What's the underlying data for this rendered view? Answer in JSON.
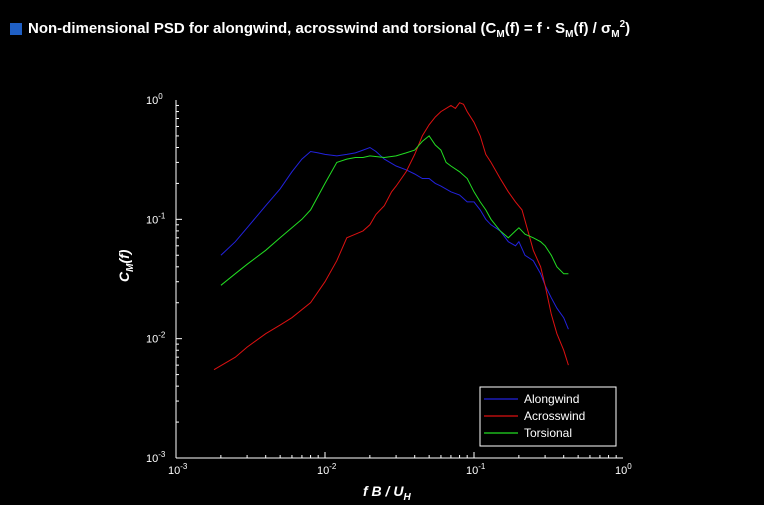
{
  "chart_data": {
    "type": "line",
    "title": "Non-dimensional PSD for alongwind, acrosswind and torsional (C_M(f) = f · S_M(f) / σ_M^2)",
    "xlabel": "f B / U_H",
    "ylabel": "C_M(f)",
    "xscale": "log",
    "yscale": "log",
    "xlim": [
      0.001,
      1
    ],
    "ylim": [
      0.001,
      1
    ],
    "x_ticks": [
      {
        "base": "10",
        "exp": "-3"
      },
      {
        "base": "10",
        "exp": "-2"
      },
      {
        "base": "10",
        "exp": "-1"
      },
      {
        "base": "10",
        "exp": "0"
      }
    ],
    "y_ticks": [
      {
        "base": "10",
        "exp": "-3"
      },
      {
        "base": "10",
        "exp": "-2"
      },
      {
        "base": "10",
        "exp": "-1"
      },
      {
        "base": "10",
        "exp": "0"
      }
    ],
    "grid": false,
    "legend_position": "bottom-right",
    "series": [
      {
        "name": "Alongwind",
        "color": "#2222dd",
        "x": [
          0.002,
          0.0025,
          0.003,
          0.004,
          0.005,
          0.006,
          0.007,
          0.008,
          0.009,
          0.01,
          0.012,
          0.014,
          0.016,
          0.018,
          0.02,
          0.022,
          0.025,
          0.03,
          0.035,
          0.04,
          0.045,
          0.05,
          0.055,
          0.06,
          0.07,
          0.08,
          0.09,
          0.1,
          0.11,
          0.12,
          0.13,
          0.15,
          0.17,
          0.19,
          0.2,
          0.22,
          0.25,
          0.28,
          0.3,
          0.33,
          0.36,
          0.4,
          0.43
        ],
        "y": [
          0.05,
          0.065,
          0.085,
          0.13,
          0.18,
          0.25,
          0.32,
          0.37,
          0.36,
          0.35,
          0.34,
          0.35,
          0.36,
          0.38,
          0.4,
          0.37,
          0.32,
          0.28,
          0.26,
          0.24,
          0.22,
          0.22,
          0.2,
          0.19,
          0.17,
          0.16,
          0.14,
          0.14,
          0.12,
          0.1,
          0.09,
          0.08,
          0.065,
          0.06,
          0.065,
          0.05,
          0.045,
          0.035,
          0.028,
          0.022,
          0.018,
          0.015,
          0.012
        ]
      },
      {
        "name": "Acrosswind",
        "color": "#dd1111",
        "x": [
          0.0018,
          0.0025,
          0.003,
          0.004,
          0.005,
          0.006,
          0.008,
          0.01,
          0.012,
          0.014,
          0.016,
          0.018,
          0.02,
          0.022,
          0.025,
          0.028,
          0.03,
          0.035,
          0.04,
          0.045,
          0.05,
          0.055,
          0.06,
          0.065,
          0.07,
          0.075,
          0.08,
          0.085,
          0.09,
          0.1,
          0.11,
          0.12,
          0.13,
          0.15,
          0.17,
          0.19,
          0.21,
          0.23,
          0.25,
          0.28,
          0.3,
          0.33,
          0.36,
          0.4,
          0.43
        ],
        "y": [
          0.0055,
          0.007,
          0.0085,
          0.011,
          0.013,
          0.015,
          0.02,
          0.03,
          0.045,
          0.07,
          0.075,
          0.08,
          0.09,
          0.11,
          0.13,
          0.17,
          0.19,
          0.25,
          0.35,
          0.5,
          0.62,
          0.72,
          0.8,
          0.85,
          0.9,
          0.85,
          0.95,
          0.92,
          0.8,
          0.65,
          0.5,
          0.35,
          0.3,
          0.22,
          0.17,
          0.14,
          0.12,
          0.08,
          0.055,
          0.04,
          0.028,
          0.016,
          0.011,
          0.008,
          0.006
        ]
      },
      {
        "name": "Torsional",
        "color": "#22dd22",
        "x": [
          0.002,
          0.0025,
          0.003,
          0.004,
          0.005,
          0.006,
          0.007,
          0.008,
          0.01,
          0.012,
          0.014,
          0.016,
          0.018,
          0.02,
          0.025,
          0.03,
          0.035,
          0.04,
          0.045,
          0.05,
          0.055,
          0.06,
          0.065,
          0.07,
          0.08,
          0.09,
          0.1,
          0.11,
          0.12,
          0.13,
          0.15,
          0.17,
          0.19,
          0.2,
          0.22,
          0.25,
          0.28,
          0.3,
          0.33,
          0.36,
          0.4,
          0.43
        ],
        "y": [
          0.028,
          0.035,
          0.042,
          0.055,
          0.07,
          0.085,
          0.1,
          0.12,
          0.2,
          0.3,
          0.32,
          0.33,
          0.33,
          0.34,
          0.33,
          0.34,
          0.36,
          0.38,
          0.45,
          0.5,
          0.42,
          0.38,
          0.3,
          0.28,
          0.25,
          0.22,
          0.17,
          0.14,
          0.12,
          0.1,
          0.08,
          0.07,
          0.08,
          0.085,
          0.075,
          0.07,
          0.065,
          0.06,
          0.05,
          0.04,
          0.035,
          0.035
        ]
      }
    ]
  }
}
